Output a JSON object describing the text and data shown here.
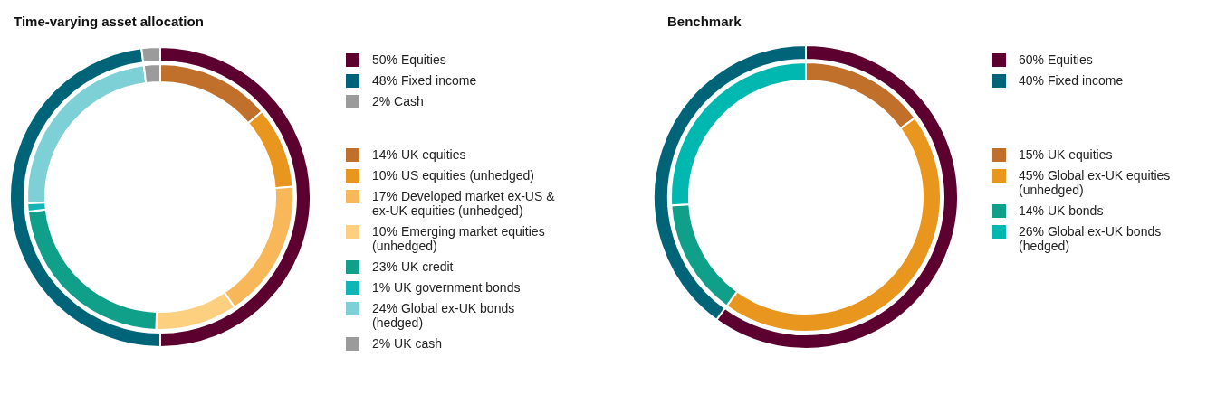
{
  "chart_data": [
    {
      "type": "donut",
      "title": "Time-varying asset allocation",
      "legend": "right",
      "categories": [
        "Equities",
        "Fixed income",
        "Cash"
      ],
      "values": [
        50,
        48,
        2
      ],
      "value_labels": [
        "50%",
        "48%",
        "2%"
      ],
      "colors": [
        "#5c0030",
        "#006478",
        "#9b9b9b"
      ]
    },
    {
      "type": "donut",
      "legend": "right",
      "categories": [
        "UK equities",
        "US equities (unhedged)",
        "Developed market ex-US & ex-UK equities (unhedged)",
        "Emerging market equities (unhedged)",
        "UK credit",
        "UK government bonds",
        "Global ex-UK bonds (hedged)",
        "UK cash"
      ],
      "values": [
        14,
        10,
        17,
        10,
        23,
        1,
        24,
        2
      ],
      "value_labels": [
        "14%",
        "10%",
        "17%",
        "10%",
        "23%",
        "1%",
        "24%",
        "2%"
      ],
      "colors": [
        "#c0702a",
        "#e8961e",
        "#f8b85a",
        "#fdd080",
        "#10a08a",
        "#11b5b5",
        "#7dd0d5",
        "#9b9b9b"
      ]
    },
    {
      "type": "donut",
      "title": "Benchmark",
      "legend": "right",
      "categories": [
        "Equities",
        "Fixed income"
      ],
      "values": [
        60,
        40
      ],
      "value_labels": [
        "60%",
        "40%"
      ],
      "colors": [
        "#5c0030",
        "#006478"
      ]
    },
    {
      "type": "donut",
      "legend": "right",
      "categories": [
        "UK equities",
        "Global ex-UK equities (unhedged)",
        "UK bonds",
        "Global ex-UK bonds (hedged)"
      ],
      "values": [
        15,
        45,
        14,
        26
      ],
      "value_labels": [
        "15%",
        "45%",
        "14%",
        "26%"
      ],
      "colors": [
        "#c0702a",
        "#e8961e",
        "#10a08a",
        "#00b8b0"
      ]
    }
  ]
}
